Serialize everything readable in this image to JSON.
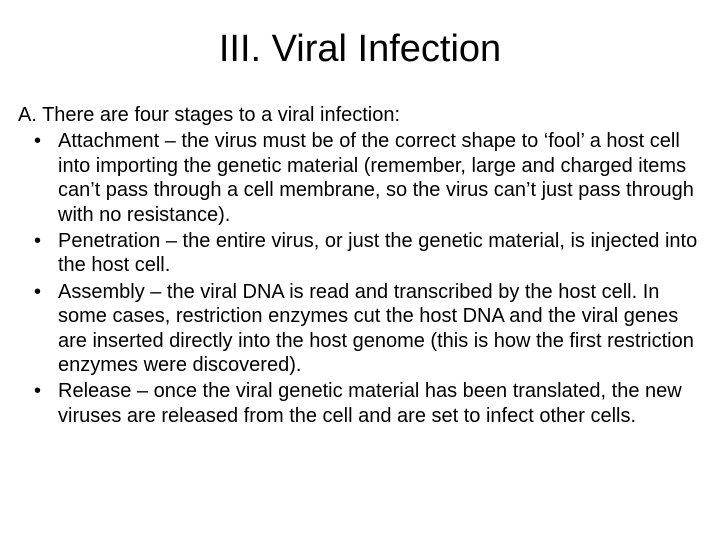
{
  "slide": {
    "title": "III. Viral Infection",
    "intro": "A. There are four stages to a viral infection:",
    "bullets": [
      "Attachment – the virus must be of the correct shape to ‘fool’ a host cell into importing the genetic material (remember, large and charged items can’t pass through a cell membrane, so the virus can’t just pass through with no resistance).",
      "Penetration – the entire virus, or just the genetic material, is injected into the host cell.",
      "Assembly – the viral DNA is read and transcribed by the host cell.  In some cases, restriction enzymes cut the host DNA and the viral genes are inserted directly into the host genome (this is how the first restriction enzymes were discovered).",
      "Release – once the viral genetic material has been translated, the new viruses are released from the cell and are set to infect other cells."
    ]
  },
  "style": {
    "background_color": "#ffffff",
    "text_color": "#000000",
    "title_fontsize": 38,
    "body_fontsize": 20,
    "font_family": "Arial"
  }
}
